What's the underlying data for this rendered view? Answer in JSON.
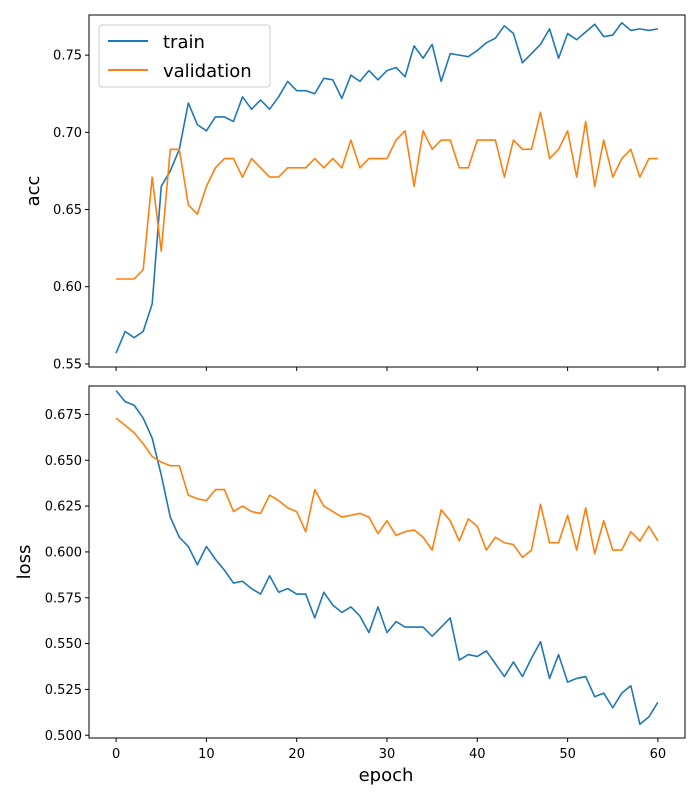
{
  "colors": {
    "train": "#1f77b4",
    "validation": "#ff7f0e"
  },
  "chart_data": [
    {
      "type": "line",
      "ylabel": "acc",
      "xlim": [
        -3,
        63
      ],
      "ylim": [
        0.548,
        0.776
      ],
      "xticks": [
        0,
        10,
        20,
        30,
        40,
        50,
        60
      ],
      "xtick_labels_shown": false,
      "yticks": [
        0.55,
        0.6,
        0.65,
        0.7,
        0.75
      ],
      "ytick_labels": [
        "0.55",
        "0.60",
        "0.65",
        "0.70",
        "0.75"
      ],
      "legend": "upper-left",
      "series": [
        {
          "name": "train",
          "values": [
            0.557,
            0.571,
            0.567,
            0.571,
            0.589,
            0.665,
            0.675,
            0.689,
            0.719,
            0.705,
            0.701,
            0.71,
            0.71,
            0.707,
            0.723,
            0.715,
            0.721,
            0.715,
            0.723,
            0.733,
            0.727,
            0.727,
            0.725,
            0.735,
            0.734,
            0.722,
            0.737,
            0.733,
            0.74,
            0.734,
            0.74,
            0.742,
            0.736,
            0.756,
            0.748,
            0.757,
            0.733,
            0.751,
            0.75,
            0.749,
            0.753,
            0.758,
            0.761,
            0.769,
            0.764,
            0.745,
            0.751,
            0.757,
            0.767,
            0.748,
            0.764,
            0.76,
            0.765,
            0.77,
            0.762,
            0.763,
            0.771,
            0.766,
            0.767,
            0.766,
            0.767
          ]
        },
        {
          "name": "validation",
          "values": [
            0.605,
            0.605,
            0.605,
            0.611,
            0.671,
            0.623,
            0.689,
            0.689,
            0.653,
            0.647,
            0.665,
            0.677,
            0.683,
            0.683,
            0.671,
            0.683,
            0.677,
            0.671,
            0.671,
            0.677,
            0.677,
            0.677,
            0.683,
            0.677,
            0.683,
            0.677,
            0.695,
            0.677,
            0.683,
            0.683,
            0.683,
            0.695,
            0.701,
            0.665,
            0.701,
            0.689,
            0.695,
            0.695,
            0.677,
            0.677,
            0.695,
            0.695,
            0.695,
            0.671,
            0.695,
            0.689,
            0.689,
            0.713,
            0.683,
            0.689,
            0.701,
            0.671,
            0.707,
            0.665,
            0.695,
            0.671,
            0.683,
            0.689,
            0.671,
            0.683,
            0.683
          ]
        }
      ]
    },
    {
      "type": "line",
      "xlabel": "epoch",
      "ylabel": "loss",
      "xlim": [
        -3,
        63
      ],
      "ylim": [
        0.4985,
        0.6905
      ],
      "xticks": [
        0,
        10,
        20,
        30,
        40,
        50,
        60
      ],
      "xtick_labels": [
        "0",
        "10",
        "20",
        "30",
        "40",
        "50",
        "60"
      ],
      "yticks": [
        0.5,
        0.525,
        0.55,
        0.575,
        0.6,
        0.625,
        0.65,
        0.675
      ],
      "ytick_labels": [
        "0.500",
        "0.525",
        "0.550",
        "0.575",
        "0.600",
        "0.625",
        "0.650",
        "0.675"
      ],
      "series": [
        {
          "name": "train",
          "values": [
            0.688,
            0.682,
            0.68,
            0.673,
            0.662,
            0.642,
            0.619,
            0.608,
            0.603,
            0.593,
            0.603,
            0.596,
            0.59,
            0.583,
            0.584,
            0.58,
            0.577,
            0.587,
            0.578,
            0.58,
            0.577,
            0.577,
            0.564,
            0.578,
            0.571,
            0.567,
            0.57,
            0.565,
            0.556,
            0.57,
            0.556,
            0.562,
            0.559,
            0.559,
            0.559,
            0.554,
            0.559,
            0.564,
            0.541,
            0.544,
            0.543,
            0.546,
            0.539,
            0.532,
            0.54,
            0.532,
            0.542,
            0.551,
            0.531,
            0.544,
            0.529,
            0.531,
            0.532,
            0.521,
            0.523,
            0.515,
            0.523,
            0.527,
            0.506,
            0.51,
            0.518
          ]
        },
        {
          "name": "validation",
          "values": [
            0.673,
            0.669,
            0.665,
            0.659,
            0.652,
            0.649,
            0.647,
            0.647,
            0.631,
            0.629,
            0.628,
            0.634,
            0.634,
            0.622,
            0.625,
            0.622,
            0.621,
            0.631,
            0.628,
            0.624,
            0.622,
            0.611,
            0.634,
            0.625,
            0.622,
            0.619,
            0.62,
            0.621,
            0.619,
            0.61,
            0.617,
            0.609,
            0.611,
            0.612,
            0.608,
            0.601,
            0.623,
            0.617,
            0.606,
            0.618,
            0.614,
            0.601,
            0.608,
            0.605,
            0.604,
            0.597,
            0.601,
            0.626,
            0.605,
            0.605,
            0.62,
            0.601,
            0.624,
            0.599,
            0.617,
            0.601,
            0.601,
            0.611,
            0.606,
            0.614,
            0.606
          ]
        }
      ]
    }
  ]
}
